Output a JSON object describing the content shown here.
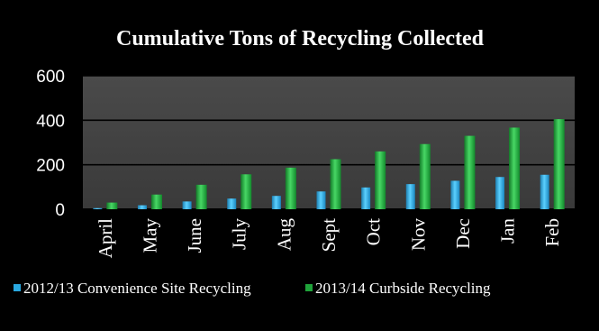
{
  "chart_data": {
    "type": "bar",
    "title": "Cumulative Tons of Recycling Collected",
    "xlabel": "",
    "ylabel": "",
    "ylim": [
      0,
      600
    ],
    "yticks": [
      "0",
      "200",
      "400",
      "600"
    ],
    "grid": true,
    "legend_position": "bottom",
    "categories": [
      "April",
      "May",
      "June",
      "July",
      "Aug",
      "Sept",
      "Oct",
      "Nov",
      "Dec",
      "Jan",
      "Feb"
    ],
    "series": [
      {
        "name": "2012/13 Convenience Site Recycling",
        "color": "#29a8e0",
        "values": [
          5,
          18,
          35,
          48,
          60,
          80,
          98,
          113,
          128,
          145,
          155
        ]
      },
      {
        "name": "2013/14 Curbside Recycling",
        "color": "#1fa33a",
        "values": [
          30,
          66,
          110,
          157,
          187,
          225,
          260,
          293,
          330,
          367,
          405
        ]
      }
    ]
  }
}
